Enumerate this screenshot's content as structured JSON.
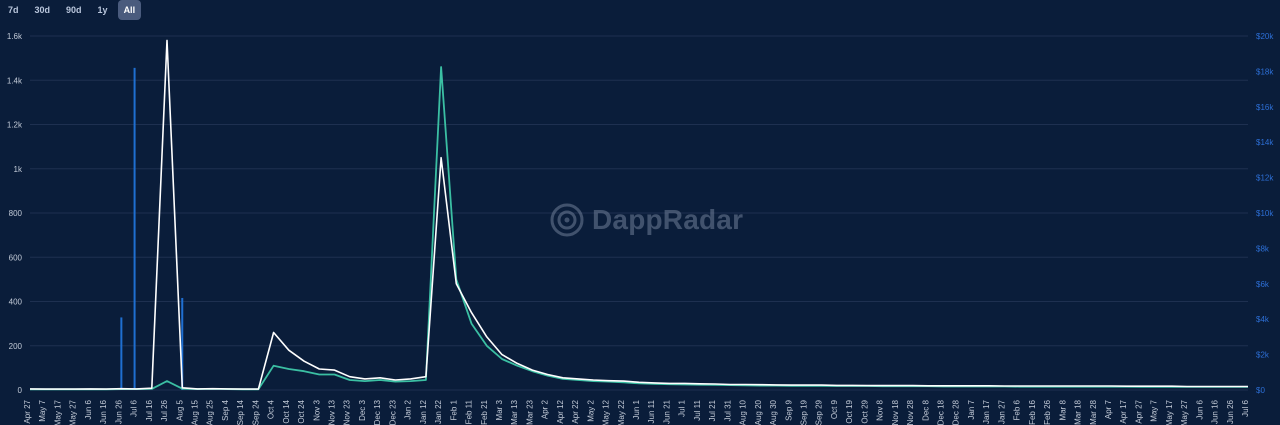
{
  "range_tabs": [
    {
      "label": "7d",
      "active": false
    },
    {
      "label": "30d",
      "active": false
    },
    {
      "label": "90d",
      "active": false
    },
    {
      "label": "1y",
      "active": false
    },
    {
      "label": "All",
      "active": true
    }
  ],
  "watermark": {
    "text": "DappRadar"
  },
  "colors": {
    "background": "#0a1d3a",
    "grid": "#1e3050",
    "left_axis_text": "#c3cbd8",
    "right_axis_text": "#2d6fd6",
    "users_line": "#ffffff",
    "transactions_line": "#3bbfa3",
    "volume_bars": "#1f6fd1"
  },
  "chart_data": {
    "type": "line",
    "grid": true,
    "legend": "none",
    "x": [
      "Apr 27",
      "May 7",
      "May 17",
      "May 27",
      "Jun 6",
      "Jun 16",
      "Jun 26",
      "Jul 6",
      "Jul 16",
      "Jul 26",
      "Aug 5",
      "Aug 15",
      "Aug 25",
      "Sep 4",
      "Sep 14",
      "Sep 24",
      "Oct 4",
      "Oct 14",
      "Oct 24",
      "Nov 3",
      "Nov 13",
      "Nov 23",
      "Dec 3",
      "Dec 13",
      "Dec 23",
      "Jan 2",
      "Jan 12",
      "Jan 22",
      "Feb 1",
      "Feb 11",
      "Feb 21",
      "Mar 3",
      "Mar 13",
      "Mar 23",
      "Apr 2",
      "Apr 12",
      "Apr 22",
      "May 2",
      "May 12",
      "May 22",
      "Jun 1",
      "Jun 11",
      "Jun 21",
      "Jul 1",
      "Jul 11",
      "Jul 21",
      "Jul 31",
      "Aug 10",
      "Aug 20",
      "Aug 30",
      "Sep 9",
      "Sep 19",
      "Sep 29",
      "Oct 9",
      "Oct 19",
      "Oct 29",
      "Nov 8",
      "Nov 18",
      "Nov 28",
      "Dec 8",
      "Dec 18",
      "Dec 28",
      "Jan 7",
      "Jan 17",
      "Jan 27",
      "Feb 6",
      "Feb 16",
      "Feb 26",
      "Mar 8",
      "Mar 18",
      "Mar 28",
      "Apr 7",
      "Apr 17",
      "Apr 27",
      "May 7",
      "May 17",
      "May 27",
      "Jun 6",
      "Jun 16",
      "Jun 26",
      "Jul 6"
    ],
    "y_left": {
      "ticks": [
        "0",
        "200",
        "400",
        "600",
        "800",
        "1k",
        "1.2k",
        "1.4k",
        "1.6k"
      ],
      "ylim": [
        0,
        1600
      ]
    },
    "y_right": {
      "ticks": [
        "$0",
        "$2k",
        "$4k",
        "$6k",
        "$8k",
        "$10k",
        "$12k",
        "$14k",
        "$16k",
        "$18k",
        "$20k"
      ],
      "ylim": [
        0,
        20000
      ]
    },
    "series": [
      {
        "key": "users",
        "axis": "left",
        "style": "line",
        "values": [
          5,
          4,
          4,
          4,
          5,
          4,
          6,
          5,
          8,
          1580,
          10,
          5,
          6,
          5,
          4,
          4,
          260,
          180,
          130,
          95,
          90,
          60,
          50,
          55,
          45,
          50,
          60,
          1050,
          480,
          350,
          240,
          160,
          120,
          90,
          70,
          55,
          50,
          45,
          42,
          40,
          35,
          32,
          30,
          30,
          28,
          27,
          25,
          25,
          24,
          23,
          22,
          22,
          22,
          21,
          21,
          20,
          20,
          20,
          20,
          19,
          19,
          19,
          19,
          19,
          18,
          18,
          18,
          18,
          18,
          18,
          18,
          18,
          17,
          17,
          17,
          17,
          16,
          16,
          16,
          16,
          16
        ]
      },
      {
        "key": "transactions",
        "axis": "left",
        "style": "line",
        "values": [
          3,
          3,
          3,
          3,
          3,
          3,
          4,
          4,
          5,
          40,
          6,
          4,
          5,
          4,
          3,
          3,
          110,
          95,
          85,
          70,
          70,
          45,
          40,
          45,
          38,
          40,
          45,
          1460,
          500,
          300,
          200,
          140,
          110,
          85,
          65,
          50,
          45,
          40,
          38,
          35,
          30,
          28,
          26,
          25,
          24,
          23,
          22,
          21,
          20,
          20,
          19,
          19,
          19,
          18,
          18,
          18,
          17,
          17,
          17,
          17,
          16,
          16,
          16,
          16,
          16,
          15,
          15,
          15,
          15,
          15,
          15,
          15,
          15,
          14,
          14,
          14,
          14,
          14,
          14,
          14,
          14
        ]
      },
      {
        "key": "volume",
        "axis": "right",
        "style": "bar",
        "values": [
          0,
          0,
          0,
          0,
          0,
          0,
          0,
          0,
          0,
          0,
          0,
          0,
          0,
          0,
          0,
          0,
          0,
          0,
          0,
          0,
          0,
          0,
          0,
          0,
          0,
          0,
          0,
          0,
          0,
          0,
          0,
          0,
          0,
          0,
          0,
          0,
          0,
          0,
          0,
          0,
          0,
          0,
          0,
          0,
          0,
          0,
          0,
          0,
          0,
          0,
          0,
          0,
          0,
          0,
          0,
          0,
          0,
          0,
          0,
          0,
          0,
          0,
          0,
          0,
          0,
          0,
          0,
          0,
          0,
          0,
          0,
          0,
          0,
          0,
          0,
          0,
          0,
          0,
          0,
          0,
          0
        ],
        "spikes": [
          {
            "x": "Jun 26",
            "value": 4100
          },
          {
            "x": "Jul 6",
            "value": 18200
          },
          {
            "x": "Aug 5",
            "value": 5200
          }
        ]
      }
    ]
  }
}
